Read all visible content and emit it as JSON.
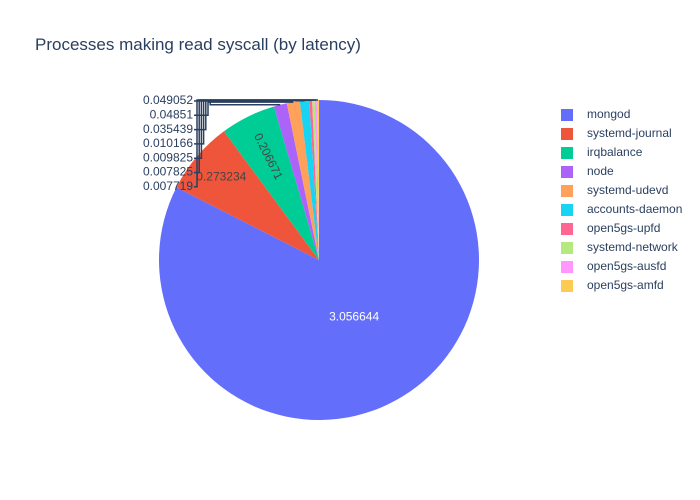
{
  "chart_data": {
    "type": "pie",
    "title": "Processes making read syscall (by latency)",
    "labels": [
      "mongod",
      "systemd-journal",
      "irqbalance",
      "node",
      "systemd-udevd",
      "accounts-daemon",
      "open5gs-upfd",
      "systemd-network",
      "open5gs-ausfd",
      "open5gs-amfd"
    ],
    "values": [
      3.056644,
      0.273234,
      0.206671,
      0.049052,
      0.04851,
      0.035439,
      0.010166,
      0.009825,
      0.007825,
      0.007719
    ],
    "value_labels": [
      "3.056644",
      "0.273234",
      "0.206671",
      "0.049052",
      "0.04851",
      "0.035439",
      "0.010166",
      "0.009825",
      "0.007825",
      "0.007719"
    ],
    "colors": [
      "#636efa",
      "#EF553B",
      "#00cc96",
      "#ab63fa",
      "#FFA15A",
      "#19d3f3",
      "#FF6692",
      "#B6E880",
      "#FF97FF",
      "#FECB52"
    ],
    "legend_position": "right",
    "direction": "clockwise",
    "sorted": true
  }
}
